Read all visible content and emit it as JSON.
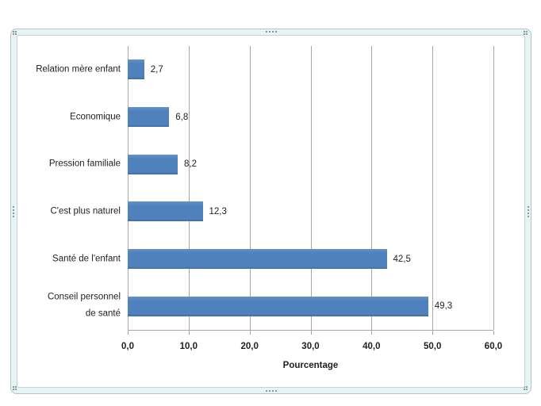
{
  "chart_object": {
    "selected": true,
    "frame_color": "#e7f4f5",
    "handle_dot_color": "#84979b"
  },
  "chart_data": {
    "type": "bar",
    "orientation": "horizontal",
    "title": "",
    "xlabel": "Pourcentage",
    "ylabel": "",
    "categories": [
      "Relation mère enfant",
      "Economique",
      "Pression familiale",
      "C'est plus naturel",
      "Santé de l'enfant",
      "Conseil personnel de santé"
    ],
    "category_display": [
      [
        "Relation mère enfant"
      ],
      [
        "Economique"
      ],
      [
        "Pression familiale"
      ],
      [
        "C'est plus naturel"
      ],
      [
        "Santé de l'enfant"
      ],
      [
        "Conseil personnel",
        "de santé"
      ]
    ],
    "values": [
      2.7,
      6.8,
      8.2,
      12.3,
      42.5,
      49.3
    ],
    "value_labels": [
      "2,7",
      "6,8",
      "8,2",
      "12,3",
      "42,5",
      "49,3"
    ],
    "xlim": [
      0,
      60
    ],
    "x_ticks": [
      0,
      10,
      20,
      30,
      40,
      50,
      60
    ],
    "x_tick_labels": [
      "0,0",
      "10,0",
      "20,0",
      "30,0",
      "40,0",
      "50,0",
      "60,0"
    ],
    "grid": true,
    "legend": "none",
    "data_labels": true,
    "bar_color": "#4f81bd",
    "gridline_color": "#a6a6a6"
  }
}
